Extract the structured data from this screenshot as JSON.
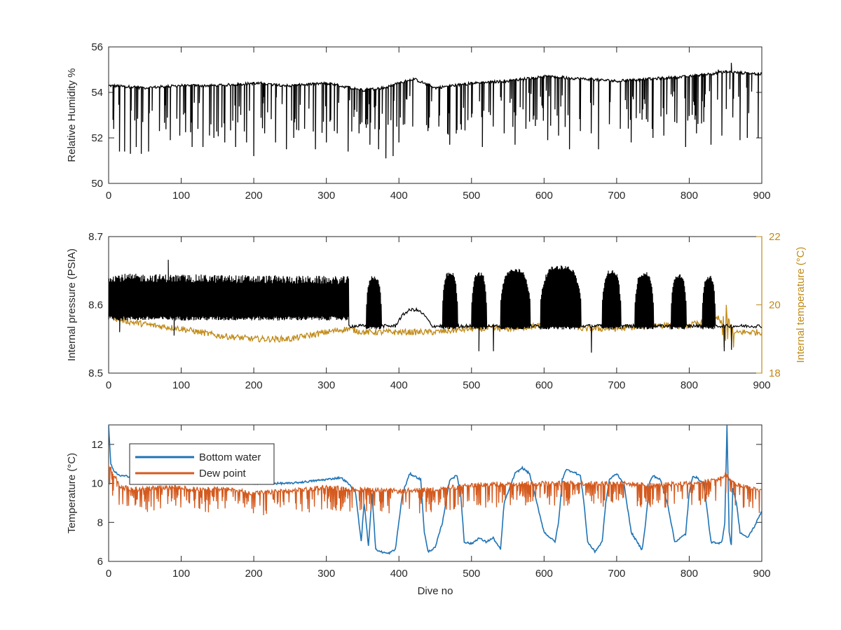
{
  "colors": {
    "black": "#000000",
    "temperature_right": "#c08a17",
    "bottom_water": "#1f73b4",
    "dew_point": "#d45a1e",
    "axis": "#262626"
  },
  "chart_data": [
    {
      "type": "line",
      "title": "",
      "xlabel": "",
      "ylabel": "Relative Humidity %",
      "xlim": [
        0,
        900
      ],
      "ylim": [
        50,
        56
      ],
      "xticks": [
        "0",
        "100",
        "200",
        "300",
        "400",
        "500",
        "600",
        "700",
        "800",
        "900"
      ],
      "yticks": [
        "50",
        "52",
        "54",
        "56"
      ],
      "legend": "none",
      "series": [
        {
          "color": "#000000",
          "baseline": {
            "x": [
              0,
              50,
              100,
              150,
              200,
              250,
              300,
              350,
              380,
              420,
              450,
              500,
              550,
              600,
              650,
              700,
              750,
              800,
              850,
              900
            ],
            "y": [
              54.3,
              54.2,
              54.3,
              54.3,
              54.4,
              54.3,
              54.4,
              54.1,
              54.2,
              54.6,
              54.2,
              54.4,
              54.5,
              54.7,
              54.6,
              54.5,
              54.6,
              54.7,
              54.9,
              54.8
            ]
          },
          "dips": [
            {
              "x": 15,
              "y": 51.4
            },
            {
              "x": 22,
              "y": 51.4
            },
            {
              "x": 30,
              "y": 51.3
            },
            {
              "x": 38,
              "y": 51.6
            },
            {
              "x": 45,
              "y": 51.3
            },
            {
              "x": 55,
              "y": 51.4
            },
            {
              "x": 70,
              "y": 52.3
            },
            {
              "x": 85,
              "y": 51.9
            },
            {
              "x": 98,
              "y": 52.1
            },
            {
              "x": 115,
              "y": 51.6
            },
            {
              "x": 130,
              "y": 51.6
            },
            {
              "x": 145,
              "y": 52.0
            },
            {
              "x": 160,
              "y": 51.8
            },
            {
              "x": 175,
              "y": 51.6
            },
            {
              "x": 190,
              "y": 51.8
            },
            {
              "x": 200,
              "y": 51.2
            },
            {
              "x": 215,
              "y": 52.2
            },
            {
              "x": 230,
              "y": 51.8
            },
            {
              "x": 245,
              "y": 51.5
            },
            {
              "x": 255,
              "y": 52.0
            },
            {
              "x": 270,
              "y": 52.4
            },
            {
              "x": 285,
              "y": 51.5
            },
            {
              "x": 300,
              "y": 51.8
            },
            {
              "x": 315,
              "y": 52.2
            },
            {
              "x": 330,
              "y": 51.4
            },
            {
              "x": 345,
              "y": 52.2
            },
            {
              "x": 360,
              "y": 51.7
            },
            {
              "x": 372,
              "y": 51.5
            },
            {
              "x": 382,
              "y": 51.1
            },
            {
              "x": 392,
              "y": 51.2
            },
            {
              "x": 400,
              "y": 51.8
            },
            {
              "x": 408,
              "y": 52.6
            },
            {
              "x": 440,
              "y": 52.3
            },
            {
              "x": 455,
              "y": 52.5
            },
            {
              "x": 470,
              "y": 51.7
            },
            {
              "x": 485,
              "y": 52.6
            },
            {
              "x": 500,
              "y": 52.9
            },
            {
              "x": 515,
              "y": 51.6
            },
            {
              "x": 530,
              "y": 52.5
            },
            {
              "x": 545,
              "y": 52.2
            },
            {
              "x": 560,
              "y": 51.7
            },
            {
              "x": 575,
              "y": 52.4
            },
            {
              "x": 590,
              "y": 52.8
            },
            {
              "x": 605,
              "y": 51.9
            },
            {
              "x": 620,
              "y": 52.1
            },
            {
              "x": 635,
              "y": 51.5
            },
            {
              "x": 650,
              "y": 52.3
            },
            {
              "x": 665,
              "y": 52.2
            },
            {
              "x": 675,
              "y": 51.5
            },
            {
              "x": 690,
              "y": 52.6
            },
            {
              "x": 705,
              "y": 52.4
            },
            {
              "x": 720,
              "y": 51.8
            },
            {
              "x": 735,
              "y": 52.8
            },
            {
              "x": 750,
              "y": 52.0
            },
            {
              "x": 765,
              "y": 52.1
            },
            {
              "x": 780,
              "y": 52.7
            },
            {
              "x": 795,
              "y": 51.6
            },
            {
              "x": 810,
              "y": 52.2
            },
            {
              "x": 820,
              "y": 52.7
            },
            {
              "x": 830,
              "y": 51.7
            },
            {
              "x": 845,
              "y": 52.1
            },
            {
              "x": 860,
              "y": 52.9
            },
            {
              "x": 870,
              "y": 51.9
            },
            {
              "x": 880,
              "y": 52.0
            },
            {
              "x": 895,
              "y": 52.0
            }
          ],
          "spikes": [
            {
              "x": 858,
              "y": 55.3
            },
            {
              "x": 840,
              "y": 55.0
            }
          ]
        }
      ]
    },
    {
      "type": "line",
      "title": "",
      "xlabel": "",
      "ylabel": "Internal pressure (PSIA)",
      "ylabel_right": "Internal temperature (°C)",
      "xlim": [
        0,
        900
      ],
      "ylim": [
        8.5,
        8.7
      ],
      "ylim_right": [
        18,
        22
      ],
      "xticks": [
        "0",
        "100",
        "200",
        "300",
        "400",
        "500",
        "600",
        "700",
        "800",
        "900"
      ],
      "yticks": [
        "8.5",
        "8.6",
        "8.7"
      ],
      "yticks_right": [
        "18",
        "20",
        "22"
      ],
      "legend": "none",
      "series": [
        {
          "axis": "left",
          "color": "#000000",
          "segments": [
            {
              "x0": 0,
              "x1": 330,
              "low": 8.58,
              "high": 8.64,
              "period": 6
            },
            {
              "x0": 330,
              "x1": 900,
              "low": 8.566,
              "high": 8.572,
              "period": 6
            }
          ],
          "bursts": [
            {
              "x0": 355,
              "x1": 375,
              "high": 8.64
            },
            {
              "x0": 460,
              "x1": 480,
              "high": 8.645
            },
            {
              "x0": 500,
              "x1": 520,
              "high": 8.645
            },
            {
              "x0": 540,
              "x1": 580,
              "high": 8.65
            },
            {
              "x0": 595,
              "x1": 650,
              "high": 8.655
            },
            {
              "x0": 680,
              "x1": 705,
              "high": 8.648
            },
            {
              "x0": 725,
              "x1": 750,
              "high": 8.645
            },
            {
              "x0": 775,
              "x1": 795,
              "high": 8.642
            },
            {
              "x0": 818,
              "x1": 835,
              "high": 8.64
            }
          ],
          "humps": [
            {
              "x0": 395,
              "x1": 445,
              "high": 8.59
            }
          ],
          "spikes": [
            {
              "x": 82,
              "y": 8.666
            },
            {
              "x": 15,
              "y": 8.56
            },
            {
              "x": 90,
              "y": 8.555
            },
            {
              "x": 510,
              "y": 8.532
            },
            {
              "x": 530,
              "y": 8.532
            },
            {
              "x": 665,
              "y": 8.53
            },
            {
              "x": 848,
              "y": 8.532
            },
            {
              "x": 858,
              "y": 8.534
            }
          ]
        },
        {
          "axis": "right",
          "color": "#c08a17",
          "x": [
            0,
            10,
            30,
            60,
            100,
            150,
            200,
            250,
            300,
            330,
            350,
            400,
            450,
            500,
            550,
            600,
            630,
            650,
            700,
            750,
            800,
            840,
            855,
            870,
            900
          ],
          "y": [
            20.0,
            19.6,
            19.5,
            19.4,
            19.3,
            19.1,
            19.0,
            19.0,
            19.2,
            19.3,
            19.2,
            19.2,
            19.2,
            19.3,
            19.3,
            19.4,
            19.6,
            19.3,
            19.3,
            19.4,
            19.4,
            19.6,
            19.1,
            19.2,
            19.2
          ]
        }
      ]
    },
    {
      "type": "line",
      "title": "",
      "xlabel": "Dive no",
      "ylabel": "Temperature (°C)",
      "xlim": [
        0,
        900
      ],
      "ylim": [
        6,
        13
      ],
      "xticks": [
        "0",
        "100",
        "200",
        "300",
        "400",
        "500",
        "600",
        "700",
        "800",
        "900"
      ],
      "yticks": [
        "6",
        "8",
        "10",
        "12"
      ],
      "legend": "top-left",
      "series": [
        {
          "name": "Bottom water",
          "color": "#1f73b4",
          "x": [
            0,
            3,
            8,
            15,
            50,
            100,
            150,
            200,
            250,
            300,
            320,
            330,
            340,
            348,
            352,
            358,
            363,
            368,
            375,
            385,
            395,
            405,
            415,
            430,
            435,
            440,
            450,
            460,
            470,
            480,
            485,
            490,
            500,
            510,
            520,
            530,
            540,
            545,
            560,
            570,
            580,
            600,
            615,
            620,
            625,
            630,
            640,
            650,
            655,
            660,
            670,
            680,
            685,
            690,
            700,
            710,
            720,
            728,
            735,
            740,
            745,
            750,
            760,
            770,
            780,
            788,
            795,
            800,
            805,
            810,
            820,
            830,
            840,
            845,
            849,
            852,
            855,
            858,
            860,
            865,
            870,
            880,
            890,
            900
          ],
          "y": [
            13.0,
            11.0,
            10.6,
            10.4,
            10.3,
            10.2,
            10.2,
            10.0,
            10.0,
            10.2,
            10.3,
            10.0,
            9.6,
            7.0,
            9.0,
            6.8,
            9.5,
            6.6,
            6.5,
            6.4,
            6.6,
            9.5,
            10.5,
            10.2,
            7.5,
            6.5,
            6.7,
            8.0,
            10.2,
            10.4,
            9.5,
            7.0,
            6.9,
            7.2,
            7.0,
            7.2,
            6.6,
            9.0,
            10.5,
            10.8,
            10.5,
            7.5,
            7.0,
            8.0,
            10.2,
            10.7,
            10.6,
            10.4,
            9.0,
            7.0,
            6.5,
            7.0,
            9.0,
            10.2,
            10.5,
            10.0,
            7.5,
            7.0,
            6.6,
            8.0,
            10.0,
            10.4,
            10.2,
            9.0,
            7.0,
            7.2,
            7.4,
            9.5,
            10.4,
            10.3,
            10.0,
            7.0,
            6.9,
            7.0,
            8.0,
            13.0,
            7.5,
            6.8,
            9.8,
            9.0,
            7.5,
            7.2,
            7.8,
            8.6
          ]
        },
        {
          "name": "Dew point",
          "color": "#d45a1e",
          "x": [
            0,
            5,
            10,
            15,
            40,
            80,
            120,
            160,
            200,
            250,
            300,
            330,
            360,
            400,
            450,
            500,
            550,
            600,
            650,
            700,
            750,
            800,
            840,
            850,
            860,
            880,
            900
          ],
          "y": [
            10.8,
            10.3,
            10.1,
            9.6,
            9.5,
            9.6,
            9.5,
            9.5,
            9.3,
            9.4,
            9.6,
            9.5,
            9.5,
            9.4,
            9.5,
            9.7,
            9.8,
            9.8,
            9.8,
            9.8,
            9.7,
            9.8,
            10.0,
            10.3,
            9.8,
            9.6,
            9.4
          ]
        }
      ]
    }
  ]
}
